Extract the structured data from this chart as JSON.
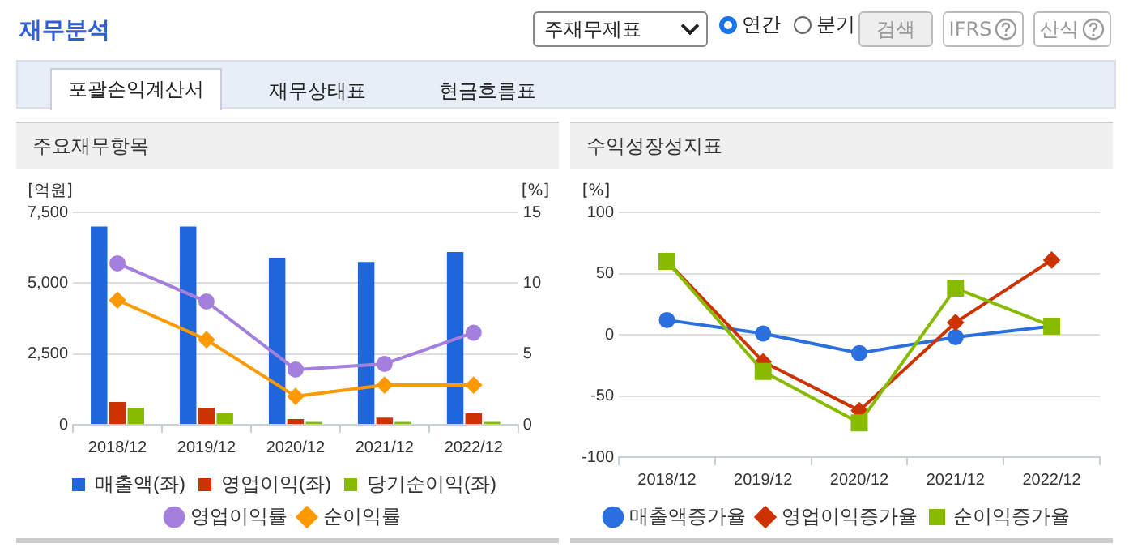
{
  "chart_data": [
    {
      "type": "other",
      "title": "재무분석",
      "annotations": [
        "주재무제표",
        "연간",
        "분기",
        "검색",
        "IFRS",
        "산식",
        "포괄손익계산서",
        "재무상태표",
        "현금흐름표"
      ]
    },
    {
      "type": "bar",
      "title": "주요재무항목",
      "categories": [
        "2018/12",
        "2019/12",
        "2020/12",
        "2021/12",
        "2022/12"
      ],
      "ylabel": "[억원]",
      "y2label": "[%]",
      "series": [
        {
          "name": "매출액(좌)",
          "color": "#1f66dd",
          "values": [
            7000,
            7000,
            5900,
            5750,
            6100
          ]
        },
        {
          "name": "영업이익(좌)",
          "color": "#cc3300",
          "values": [
            800,
            600,
            200,
            250,
            400
          ]
        },
        {
          "name": "당기순이익(좌)",
          "color": "#88bb00",
          "values": [
            600,
            400,
            100,
            100,
            100
          ]
        },
        {
          "name": "영업이익률",
          "type": "line",
          "axis": "y2",
          "marker": "circle",
          "color": "#a57fdd",
          "values": [
            11.4,
            8.7,
            3.9,
            4.3,
            6.5
          ]
        },
        {
          "name": "순이익률",
          "type": "line",
          "axis": "y2",
          "marker": "diamond",
          "color": "#ff9900",
          "values": [
            8.8,
            6.0,
            2.0,
            2.8,
            2.8
          ]
        }
      ],
      "ylim": [
        0,
        7500
      ],
      "yticks": [
        0,
        {
          "value": 2500,
          "label": "2,500"
        },
        {
          "value": 5000,
          "label": "5,000"
        },
        {
          "value": 7500,
          "label": "7,500"
        }
      ],
      "y2lim": [
        0,
        15
      ],
      "y2ticks": [
        0,
        5,
        10,
        15
      ],
      "grid": "y",
      "legend": "bottom"
    },
    {
      "type": "line",
      "title": "수익성장성지표",
      "categories": [
        "2018/12",
        "2019/12",
        "2020/12",
        "2021/12",
        "2022/12"
      ],
      "ylabel": "[%]",
      "series": [
        {
          "name": "매출액증가율",
          "marker": "circle",
          "color": "#2a6fde",
          "values": [
            12,
            1,
            -15,
            -2,
            7
          ]
        },
        {
          "name": "영업이익증가율",
          "marker": "diamond",
          "color": "#cc3300",
          "values": [
            60,
            -22,
            -62,
            10,
            61
          ]
        },
        {
          "name": "순이익증가율",
          "marker": "square",
          "color": "#88bb00",
          "values": [
            60,
            -30,
            -72,
            38,
            7
          ]
        }
      ],
      "ylim": [
        -100,
        100
      ],
      "yticks": [
        -100,
        -50,
        0,
        50,
        100
      ],
      "grid": "y",
      "legend": "bottom"
    }
  ]
}
